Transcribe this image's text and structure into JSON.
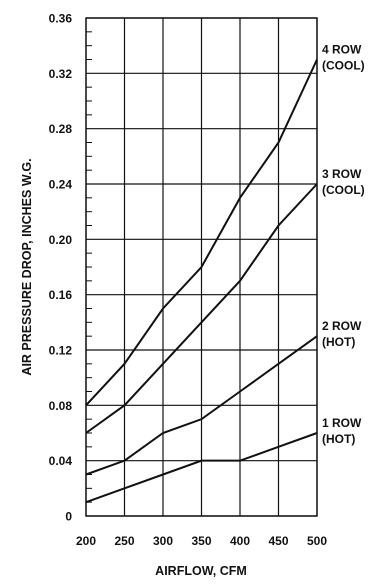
{
  "chart_data": {
    "type": "line",
    "title": "",
    "xlabel": "AIRFLOW, CFM",
    "ylabel": "AIR PRESSURE DROP, INCHES W.G.",
    "xlim": [
      200,
      500
    ],
    "ylim": [
      0,
      0.36
    ],
    "grid": true,
    "x_ticks": [
      "200",
      "250",
      "300",
      "350",
      "400",
      "450",
      "500"
    ],
    "y_ticks": [
      "0",
      "0.04",
      "0.08",
      "0.12",
      "0.16",
      "0.20",
      "0.24",
      "0.28",
      "0.32",
      "0.36"
    ],
    "x": [
      200,
      250,
      300,
      350,
      400,
      450,
      500
    ],
    "series": [
      {
        "name": "4 ROW (COOL)",
        "label_lines": [
          "4 ROW",
          "(COOL)"
        ],
        "values": [
          0.08,
          0.11,
          0.15,
          0.18,
          0.23,
          0.27,
          0.33
        ]
      },
      {
        "name": "3 ROW (COOL)",
        "label_lines": [
          "3 ROW",
          "(COOL)"
        ],
        "values": [
          0.06,
          0.08,
          0.11,
          0.14,
          0.17,
          0.21,
          0.24
        ]
      },
      {
        "name": "2 ROW (HOT)",
        "label_lines": [
          "2 ROW",
          "(HOT)"
        ],
        "values": [
          0.03,
          0.04,
          0.06,
          0.07,
          0.09,
          0.11,
          0.13
        ]
      },
      {
        "name": "1 ROW (HOT)",
        "label_lines": [
          "1 ROW",
          "(HOT)"
        ],
        "values": [
          0.01,
          0.02,
          0.03,
          0.04,
          0.04,
          0.05,
          0.06
        ]
      }
    ]
  }
}
